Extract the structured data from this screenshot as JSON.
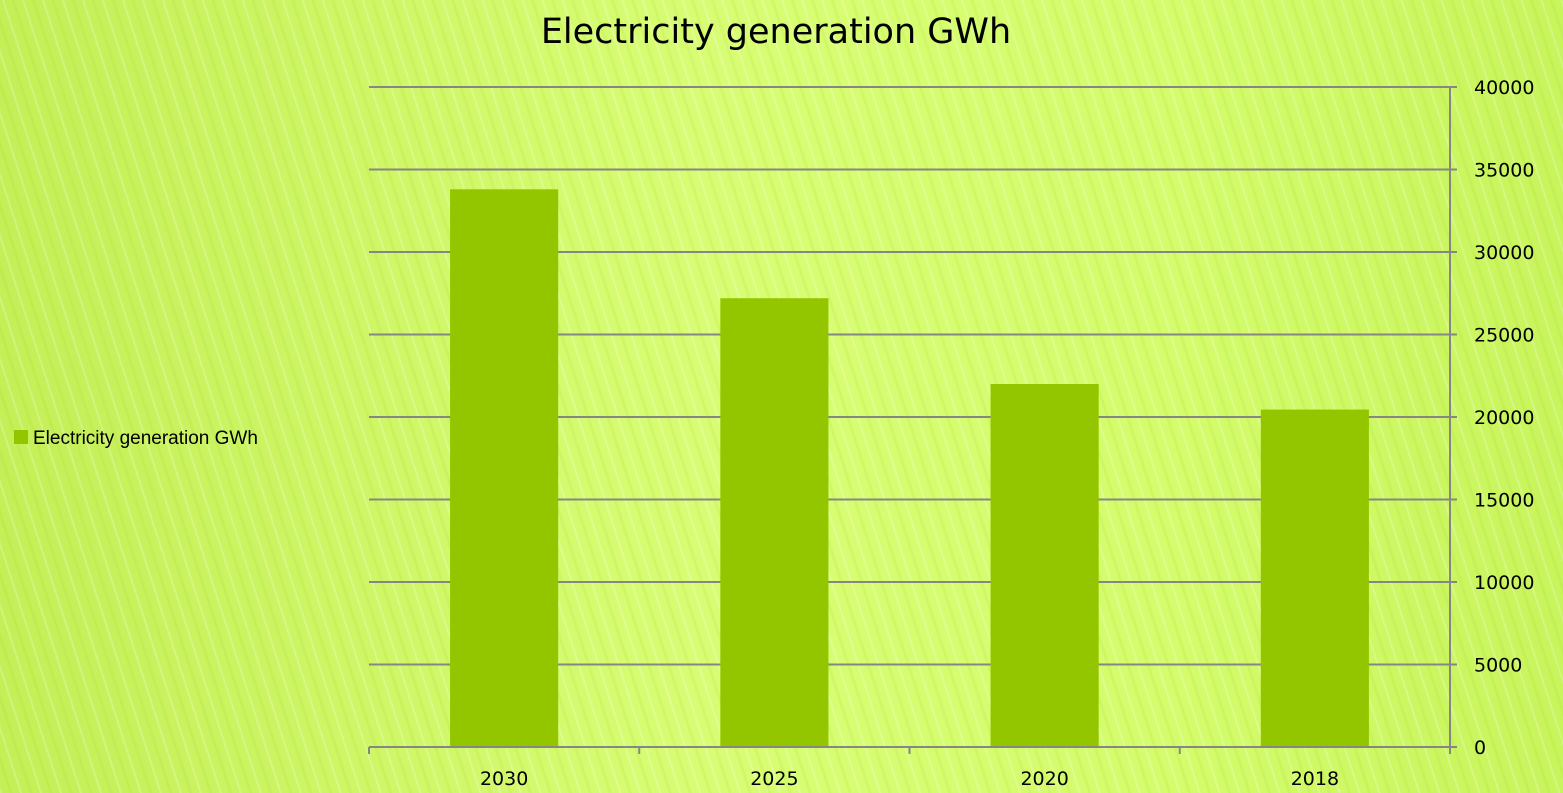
{
  "chart_data": {
    "type": "bar",
    "title": "Electricity generation GWh",
    "categories": [
      "2030",
      "2025",
      "2020",
      "2018"
    ],
    "series": [
      {
        "name": "Electricity generation GWh",
        "values": [
          33800,
          27200,
          22000,
          20450
        ],
        "color": "#94c600"
      }
    ],
    "ylim": [
      0,
      40000
    ],
    "y_ticks": [
      "0",
      "5000",
      "10000",
      "15000",
      "20000",
      "25000",
      "30000",
      "35000",
      "40000"
    ],
    "y_axis_side": "right",
    "grid": true,
    "legend": "left",
    "xlabel": "",
    "ylabel": ""
  }
}
